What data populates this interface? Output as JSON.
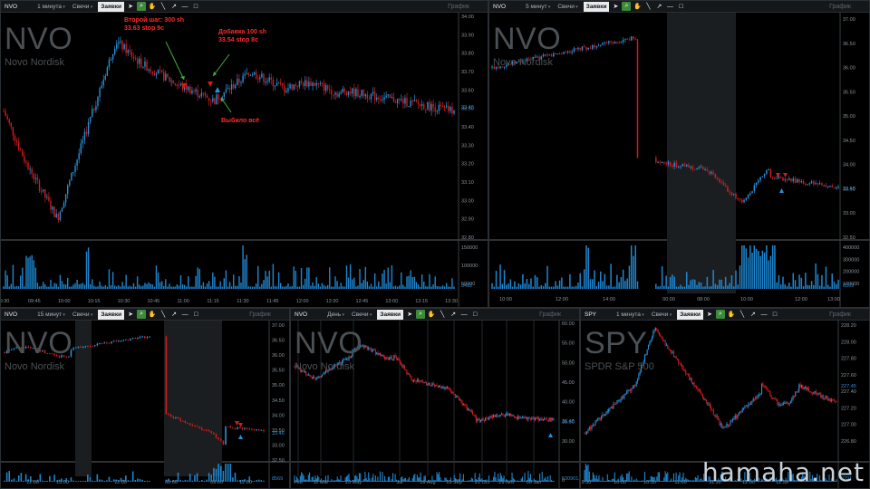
{
  "site_watermark": "hamaha.net",
  "colors": {
    "up": "#2a8fd6",
    "down": "#d01c1c",
    "volume": "#1e86d0",
    "grid": "#23282c",
    "axis": "#8a949c",
    "watermark": "#4b5055",
    "annotation": "#ff2a2a",
    "arrow": "#3fae3f"
  },
  "panes": [
    {
      "id": "p1",
      "toolbar": {
        "symbol": "NVO",
        "interval": "1 минута",
        "style": "Свечи",
        "tab": "Заявки",
        "title": "График"
      },
      "watermark": {
        "symbol": "NVO",
        "name": "Novo Nordisk"
      },
      "price_axis": [
        "34.00",
        "33.90",
        "33.80",
        "33.70",
        "33.60",
        "33.50",
        "33.40",
        "33.30",
        "33.20",
        "33.10",
        "33.00",
        "32.90",
        "32.80"
      ],
      "last_price": "33.48",
      "volume_axis": [
        "150000",
        "100000",
        "50000"
      ],
      "volume_last": "8492",
      "time_axis": [
        "9:30",
        "09:45",
        "10:00",
        "10:15",
        "10:30",
        "10:45",
        "11:00",
        "11:15",
        "11:30",
        "11:45",
        "12:00",
        "12:30",
        "12:45",
        "13:00",
        "13:15",
        "13:30"
      ],
      "annotations": [
        {
          "text": "Второй шаг: 300 sh\n33.63 stop 9c"
        },
        {
          "text": "Добавка 100 sh\n33.54 stop 8c"
        },
        {
          "text": "Выбило всё"
        }
      ]
    },
    {
      "id": "p2",
      "toolbar": {
        "symbol": "NVO",
        "interval": "5 минут",
        "style": "Свечи",
        "tab": "Заявки",
        "title": "График"
      },
      "watermark": {
        "symbol": "NVO",
        "name": "Novo Nordisk"
      },
      "price_axis": [
        "37.00",
        "36.50",
        "36.00",
        "35.50",
        "35.00",
        "34.50",
        "34.00",
        "33.50",
        "33.00",
        "32.50"
      ],
      "last_price": "33.48",
      "volume_axis": [
        "400000",
        "300000",
        "200000",
        "100000"
      ],
      "volume_last": "8569",
      "time_axis": [
        "10:00",
        "12:00",
        "14:00",
        "00:00",
        "08:00",
        "10:00",
        "12:00",
        "13:00"
      ]
    },
    {
      "id": "p3",
      "toolbar": {
        "symbol": "NVO",
        "interval": "15 минут",
        "style": "Свечи",
        "tab": "Заявки",
        "title": "График"
      },
      "watermark": {
        "symbol": "NVO",
        "name": "Novo Nordisk"
      },
      "price_axis": [
        "37.00",
        "36.50",
        "36.00",
        "35.50",
        "35.00",
        "34.50",
        "34.00",
        "33.50",
        "33.00",
        "32.50"
      ],
      "last_price": "33.46",
      "volume_last": "8569",
      "time_axis": [
        "12:00",
        "15:00",
        "12:00",
        "00:00",
        "09:00",
        "12:00"
      ]
    },
    {
      "id": "p4",
      "toolbar": {
        "symbol": "NVO",
        "interval": "День",
        "style": "Свечи",
        "tab": "Заявки",
        "title": "График"
      },
      "watermark": {
        "symbol": "NVO",
        "name": "Novo Nordisk"
      },
      "price_axis": [
        "60.00",
        "55.00",
        "50.00",
        "45.00",
        "40.00",
        "35.00",
        "30.00"
      ],
      "last_price": "33.48",
      "volume_last": "5309012",
      "volume_zero": "0",
      "time_axis": [
        "Feb",
        "11 Mar",
        "25 May",
        "Jul",
        "09 Aug",
        "15 Sep",
        "21 Oct",
        "29 Nov",
        "06 Jan"
      ]
    },
    {
      "id": "p5",
      "toolbar": {
        "symbol": "SPY",
        "interval": "1 минута",
        "style": "Свечи",
        "tab": "Заявки",
        "title": "График"
      },
      "watermark": {
        "symbol": "SPY",
        "name": "SPDR S&P 500"
      },
      "price_axis": [
        "228.20",
        "228.00",
        "227.80",
        "227.60",
        "227.40",
        "227.20",
        "227.00",
        "226.80"
      ],
      "last_price": "227.45",
      "volume_last": "8291",
      "time_axis": [
        "9:30",
        "10:00",
        "10:30",
        "11:00",
        "11:30",
        "12:00",
        "12:30"
      ]
    }
  ]
}
